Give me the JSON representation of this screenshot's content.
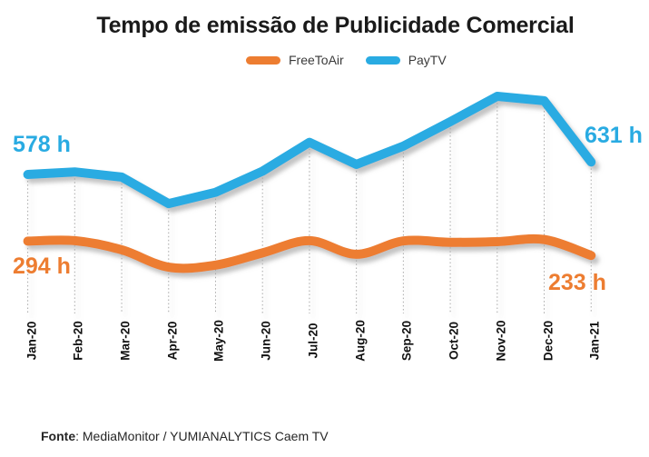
{
  "chart_data": {
    "type": "line",
    "title": "Tempo de emissão de Publicidade Comercial",
    "categories": [
      "Jan-20",
      "Feb-20",
      "Mar-20",
      "Apr-20",
      "May-20",
      "Jun-20",
      "Jul-20",
      "Aug-20",
      "Sep-20",
      "Oct-20",
      "Nov-20",
      "Dec-20",
      "Jan-21"
    ],
    "series": [
      {
        "name": "FreeToAir",
        "color": "#ED7D31",
        "values": [
          294,
          296,
          257,
          183,
          192,
          244,
          296,
          238,
          295,
          289,
          292,
          301,
          233
        ]
      },
      {
        "name": "PayTV",
        "color": "#29ABE2",
        "values": [
          578,
          589,
          567,
          454,
          502,
          592,
          715,
          621,
          699,
          803,
          911,
          892,
          631
        ]
      }
    ],
    "annotations": [
      {
        "text": "578 h",
        "series": "PayTV",
        "category": "Jan-20"
      },
      {
        "text": "631 h",
        "series": "PayTV",
        "category": "Jan-21"
      },
      {
        "text": "294 h",
        "series": "FreeToAir",
        "category": "Jan-20"
      },
      {
        "text": "233 h",
        "series": "FreeToAir",
        "category": "Jan-21"
      }
    ],
    "xlabel": "",
    "ylabel": "",
    "ylim": [
      0,
      990
    ],
    "value_unit": "h",
    "grid": "vertical dotted drop-lines from PayTV points to category axis",
    "legend_position": "top-center"
  },
  "footer": {
    "label": "Fonte",
    "text": ": MediaMonitor / YUMIANALYTICS Caem TV"
  },
  "colors": {
    "background": "#ffffff",
    "title_text": "#1a1a1a",
    "axis_label_text": "#111111",
    "drop_line": "#a8a8a8",
    "shadow": "#888888"
  }
}
